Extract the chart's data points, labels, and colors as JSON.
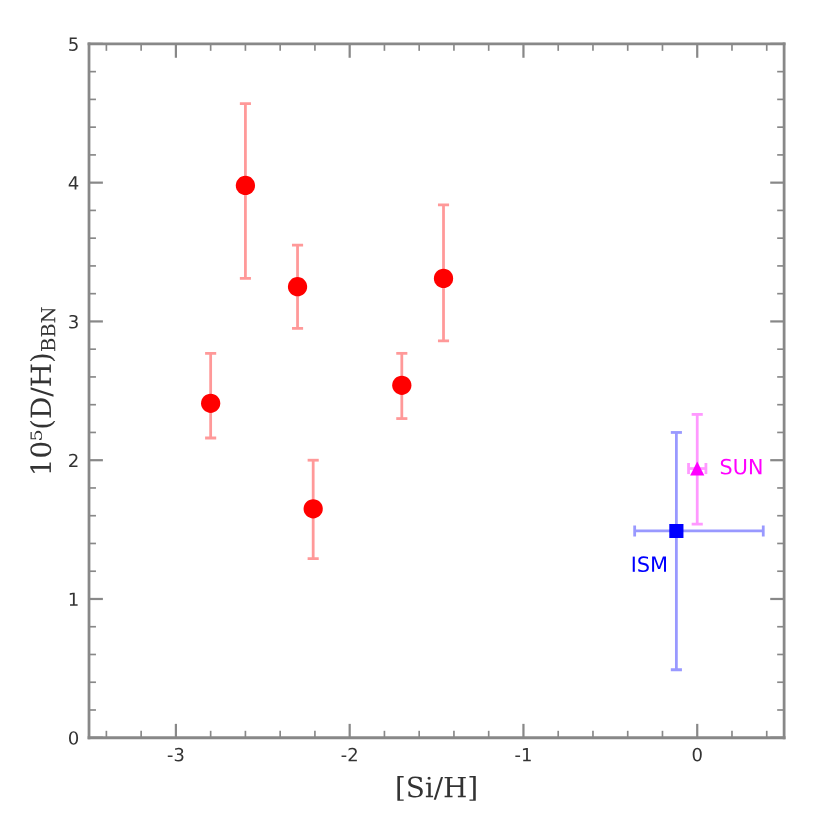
{
  "chart_data": {
    "type": "scatter",
    "xlabel": "[Si/H]",
    "ylabel": "10⁵(D/H)$_{BBN}$",
    "xlim": [
      -3.5,
      0.5
    ],
    "xticks": [
      -3,
      -2,
      -1,
      0
    ],
    "ylim": [
      0,
      5
    ],
    "yticks": [
      0,
      1,
      2,
      3,
      4,
      5
    ],
    "grid": false,
    "legend": false,
    "series": [
      {
        "marker": "circle",
        "color": "#ff0000",
        "x": [
          -2.8,
          -2.6,
          -2.3,
          -2.21,
          -1.7,
          -1.46
        ],
        "values": [
          2.41,
          3.98,
          3.25,
          1.65,
          2.54,
          3.31
        ],
        "errors": [
          [
            2.16,
            2.77
          ],
          [
            3.31,
            4.57
          ],
          [
            2.95,
            3.55
          ],
          [
            1.29,
            2.0
          ],
          [
            2.3,
            2.77
          ],
          [
            2.86,
            3.84
          ]
        ]
      },
      {
        "name": "ISM",
        "marker": "square",
        "color": "#0000ff",
        "x": [
          -0.12
        ],
        "values": [
          1.49
        ],
        "errors": [
          [
            0.49,
            2.2
          ]
        ],
        "xerrors": [
          [
            -0.36,
            0.38
          ]
        ]
      },
      {
        "name": "SUN",
        "marker": "triangle",
        "color": "#ff00ff",
        "x": [
          0.0
        ],
        "values": [
          1.94
        ],
        "errors": [
          [
            1.54,
            2.33
          ]
        ],
        "xerrors": [
          0.05
        ]
      }
    ]
  }
}
